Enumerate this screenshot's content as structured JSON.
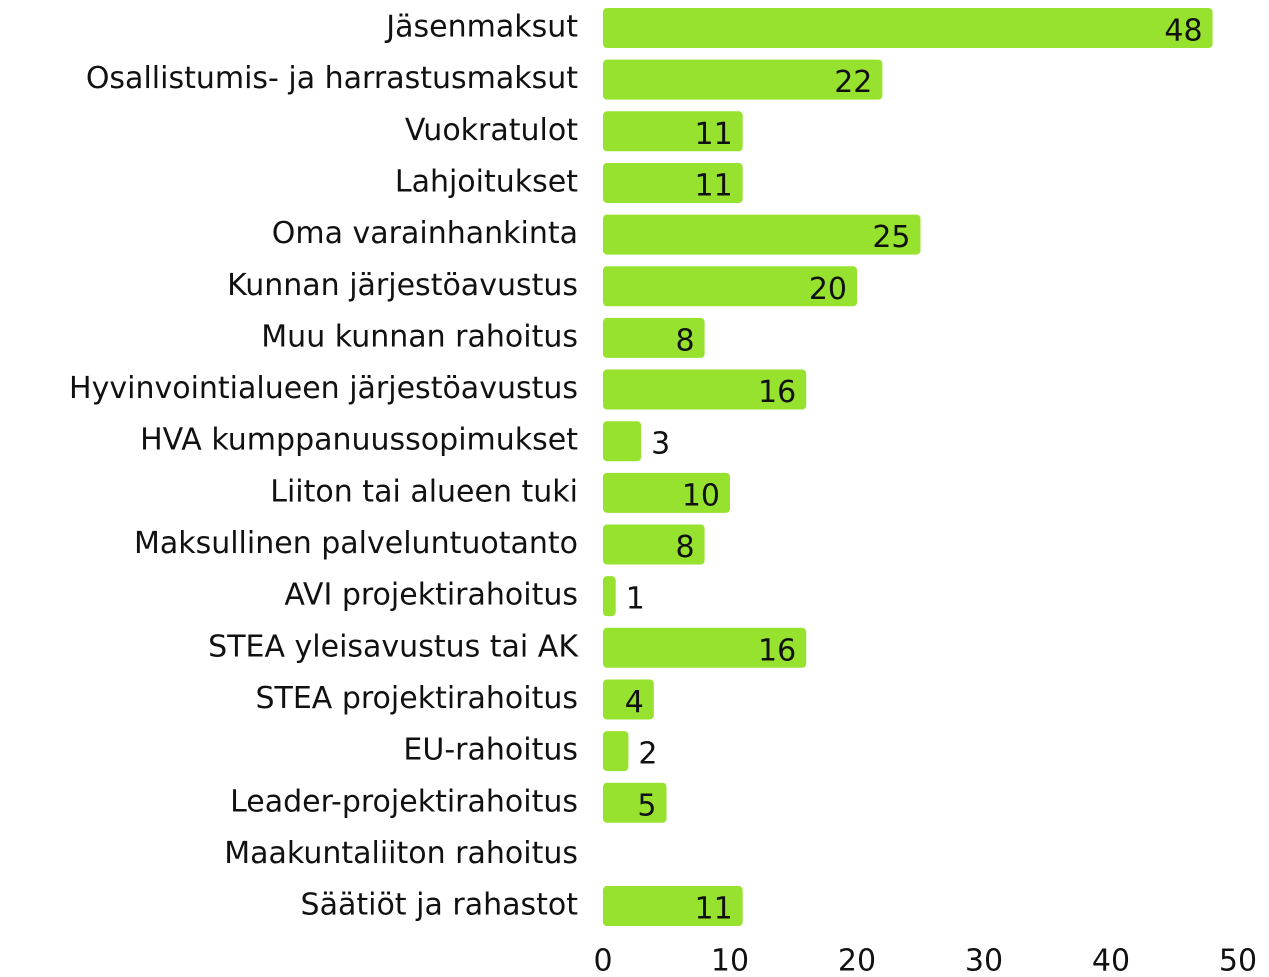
{
  "chart_data": {
    "type": "hbar",
    "categories": [
      "Jäsenmaksut",
      "Osallistumis- ja harrastusmaksut",
      "Vuokratulot",
      "Lahjoitukset",
      "Oma varainhankinta",
      "Kunnan järjestöavustus",
      "Muu kunnan rahoitus",
      "Hyvinvointialueen järjestöavustus",
      "HVA kumppanuussopimukset",
      "Liiton tai alueen tuki",
      "Maksullinen palveluntuotanto",
      "AVI projektirahoitus",
      "STEA yleisavustus tai AK",
      "STEA projektirahoitus",
      "EU-rahoitus",
      "Leader-projektirahoitus",
      "Maakuntaliiton rahoitus",
      "Säätiöt ja rahastot"
    ],
    "values": [
      48,
      22,
      11,
      11,
      25,
      20,
      8,
      16,
      3,
      10,
      8,
      1,
      16,
      4,
      2,
      5,
      null,
      11
    ],
    "color": "#96e22e",
    "xlim": [
      0,
      50
    ],
    "xticks": [
      0,
      10,
      20,
      30,
      40,
      50
    ],
    "grid": false
  }
}
